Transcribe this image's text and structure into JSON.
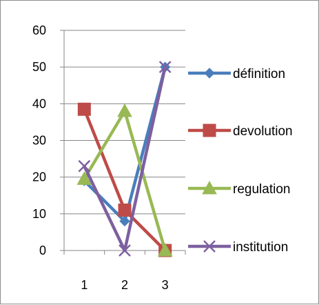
{
  "chart_data": {
    "type": "line",
    "x": [
      1,
      2,
      3
    ],
    "x_tick_labels": [
      "1",
      "2",
      "3"
    ],
    "ylim": [
      0,
      60
    ],
    "y_ticks": [
      0,
      10,
      20,
      30,
      40,
      50,
      60
    ],
    "grid": true,
    "legend_position": "right",
    "series": [
      {
        "name": "définition",
        "values": [
          19,
          8,
          50
        ],
        "color": "#4a7ebb",
        "marker": "diamond"
      },
      {
        "name": "devolution",
        "values": [
          38.5,
          11,
          0
        ],
        "color": "#be4b48",
        "marker": "square"
      },
      {
        "name": "regulation",
        "values": [
          19.5,
          38,
          0
        ],
        "color": "#98b954",
        "marker": "triangle"
      },
      {
        "name": "institution",
        "values": [
          23,
          0,
          50
        ],
        "color": "#7d60a0",
        "marker": "x"
      }
    ]
  }
}
